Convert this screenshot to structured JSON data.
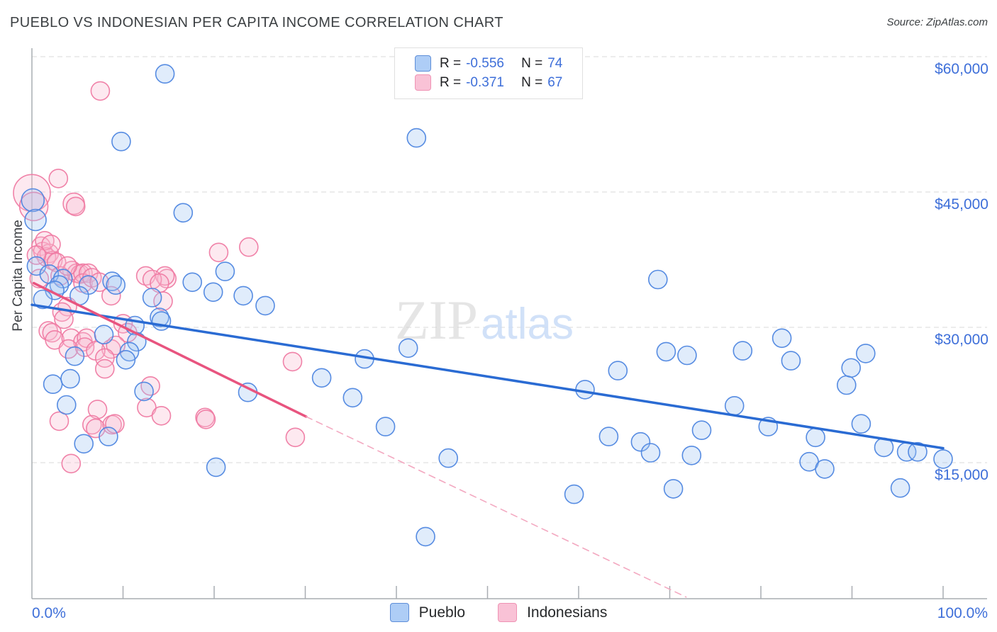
{
  "header": {
    "title": "PUEBLO VS INDONESIAN PER CAPITA INCOME CORRELATION CHART",
    "source": "Source: ZipAtlas.com"
  },
  "correlation_legend": {
    "rows": [
      {
        "series": "Pueblo",
        "r_label": "R =",
        "r_value": "-0.556",
        "n_label": "N =",
        "n_value": "74"
      },
      {
        "series": "Indonesians",
        "r_label": "R =",
        "r_value": "-0.371",
        "n_label": "N =",
        "n_value": "67"
      }
    ]
  },
  "series_legend": {
    "items": [
      {
        "label": "Pueblo",
        "swatch": "blue"
      },
      {
        "label": "Indonesians",
        "swatch": "pink"
      }
    ]
  },
  "watermark": {
    "part1": "ZIP",
    "part2": "atlas"
  },
  "colors": {
    "pueblo_stroke": "#4e86e0",
    "pueblo_fill": "#9ec3f4",
    "indonesian_stroke": "#ef7ba3",
    "indonesian_fill": "#f8bcd1",
    "pueblo_trend": "#2a6bd3",
    "indonesian_trend": "#e8547f",
    "indonesian_trend_dashed": "#f3a8c0",
    "axis_label_blue": "#3e6fd9",
    "grid": "#d9d9d9",
    "axis": "#a9adb2"
  },
  "chart_data": {
    "type": "scatter",
    "title": "PUEBLO VS INDONESIAN PER CAPITA INCOME CORRELATION CHART",
    "ylabel": "Per Capita Income",
    "xlabel_min": "0.0%",
    "xlabel_max": "100.0%",
    "x_range_pct": [
      0,
      100
    ],
    "x_tick_step_pct": 10,
    "y_range": [
      0,
      62000
    ],
    "grid": "horizontal-dashed",
    "legend_position": "top-center",
    "y_ticks": [
      {
        "value": 60000,
        "label": "$60,000"
      },
      {
        "value": 45000,
        "label": "$45,000"
      },
      {
        "value": 30000,
        "label": "$30,000"
      },
      {
        "value": 15000,
        "label": "$15,000"
      }
    ],
    "series": [
      {
        "name": "Pueblo",
        "r": -0.556,
        "n": 74,
        "stroke": "#4e86e0",
        "fill": "#9ec3f4",
        "points": [
          [
            14.6,
            58100
          ],
          [
            9.8,
            50600
          ],
          [
            42.2,
            51000
          ],
          [
            16.6,
            42700
          ],
          [
            0.1,
            44100,
            16
          ],
          [
            0.4,
            41900,
            15
          ],
          [
            0.5,
            36800
          ],
          [
            1.9,
            35900
          ],
          [
            3.4,
            35400
          ],
          [
            3.0,
            34700
          ],
          [
            2.5,
            34100
          ],
          [
            1.2,
            33100
          ],
          [
            6.2,
            34700
          ],
          [
            5.2,
            33500
          ],
          [
            8.8,
            35100
          ],
          [
            9.2,
            34700
          ],
          [
            11.3,
            30200
          ],
          [
            11.5,
            28400
          ],
          [
            14.0,
            31100
          ],
          [
            14.2,
            30700
          ],
          [
            4.7,
            26800
          ],
          [
            10.7,
            27300
          ],
          [
            10.3,
            26400
          ],
          [
            2.3,
            23700
          ],
          [
            4.2,
            24300
          ],
          [
            3.8,
            21400
          ],
          [
            12.3,
            22900
          ],
          [
            5.7,
            17100
          ],
          [
            8.4,
            17900
          ],
          [
            20.2,
            14500
          ],
          [
            17.6,
            35000
          ],
          [
            19.9,
            33900
          ],
          [
            23.2,
            33500
          ],
          [
            21.2,
            36200
          ],
          [
            25.6,
            32400
          ],
          [
            23.7,
            22800
          ],
          [
            31.8,
            24400
          ],
          [
            35.2,
            22200
          ],
          [
            36.5,
            26500
          ],
          [
            41.3,
            27700
          ],
          [
            38.8,
            19000
          ],
          [
            45.7,
            15500
          ],
          [
            43.2,
            6800
          ],
          [
            68.7,
            35300
          ],
          [
            69.6,
            27300
          ],
          [
            71.9,
            26900
          ],
          [
            64.3,
            25200
          ],
          [
            60.7,
            23100
          ],
          [
            63.3,
            17900
          ],
          [
            66.8,
            17300
          ],
          [
            67.9,
            16100
          ],
          [
            59.5,
            11500
          ],
          [
            70.4,
            12100
          ],
          [
            72.4,
            15800
          ],
          [
            73.5,
            18600
          ],
          [
            77.1,
            21300
          ],
          [
            78.0,
            27400
          ],
          [
            80.8,
            19000
          ],
          [
            82.3,
            28800
          ],
          [
            83.3,
            26300
          ],
          [
            85.3,
            15100
          ],
          [
            86.0,
            17800
          ],
          [
            87.0,
            14300
          ],
          [
            89.4,
            23600
          ],
          [
            89.9,
            25500
          ],
          [
            91.5,
            27100
          ],
          [
            91.0,
            19300
          ],
          [
            93.5,
            16700
          ],
          [
            96.0,
            16200
          ],
          [
            97.2,
            16200
          ],
          [
            95.3,
            12200
          ],
          [
            100.0,
            15400
          ],
          [
            7.9,
            29200
          ],
          [
            13.2,
            33300
          ]
        ]
      },
      {
        "name": "Indonesians",
        "r": -0.371,
        "n": 67,
        "stroke": "#ef7ba3",
        "fill": "#f8bcd1",
        "points": [
          [
            7.5,
            56200
          ],
          [
            2.9,
            46500
          ],
          [
            0.0,
            44900,
            26
          ],
          [
            0.2,
            43400,
            20
          ],
          [
            4.6,
            43700,
            15
          ],
          [
            4.8,
            43400,
            13
          ],
          [
            14.8,
            35400
          ],
          [
            20.5,
            38300
          ],
          [
            23.8,
            38900
          ],
          [
            19.0,
            20000
          ],
          [
            28.6,
            26200
          ],
          [
            28.9,
            17800
          ],
          [
            1.0,
            39000
          ],
          [
            1.2,
            38400
          ],
          [
            1.9,
            38200
          ],
          [
            1.6,
            37800
          ],
          [
            2.3,
            37400
          ],
          [
            2.7,
            37200
          ],
          [
            0.8,
            35400
          ],
          [
            4.4,
            36300
          ],
          [
            4.9,
            36000
          ],
          [
            5.3,
            35900
          ],
          [
            5.6,
            36000
          ],
          [
            6.2,
            36000
          ],
          [
            5.6,
            34900
          ],
          [
            3.1,
            35700
          ],
          [
            3.9,
            32300
          ],
          [
            3.3,
            31700
          ],
          [
            3.5,
            30900
          ],
          [
            1.8,
            29600
          ],
          [
            2.2,
            29400
          ],
          [
            2.5,
            28600
          ],
          [
            4.3,
            28800
          ],
          [
            5.6,
            28400
          ],
          [
            6.0,
            28800
          ],
          [
            8.7,
            33500
          ],
          [
            10.0,
            30400
          ],
          [
            10.5,
            29400
          ],
          [
            8.7,
            27600
          ],
          [
            9.2,
            28000
          ],
          [
            14.6,
            35700
          ],
          [
            4.0,
            27600
          ],
          [
            5.8,
            27800
          ],
          [
            7.0,
            27400
          ],
          [
            8.0,
            26600
          ],
          [
            8.0,
            25400
          ],
          [
            13.0,
            23500
          ],
          [
            12.6,
            21100
          ],
          [
            14.2,
            20200
          ],
          [
            7.2,
            20900
          ],
          [
            3.0,
            19600
          ],
          [
            6.6,
            19200
          ],
          [
            7.0,
            18800
          ],
          [
            8.8,
            19200
          ],
          [
            9.1,
            19300
          ],
          [
            19.1,
            19800
          ],
          [
            4.3,
            14900
          ],
          [
            1.4,
            39600
          ],
          [
            2.1,
            39200
          ],
          [
            0.5,
            38000
          ],
          [
            3.9,
            36800
          ],
          [
            6.6,
            35500
          ],
          [
            7.4,
            35000
          ],
          [
            12.5,
            35700
          ],
          [
            13.2,
            35300
          ],
          [
            14.0,
            34900
          ],
          [
            14.4,
            32900
          ]
        ]
      }
    ],
    "trend_lines": [
      {
        "series": "Pueblo",
        "style": "solid",
        "color": "#2a6bd3",
        "from": [
          0,
          32500
        ],
        "to": [
          100,
          16600
        ]
      },
      {
        "series": "Indonesians",
        "style": "solid",
        "color": "#e8547f",
        "from": [
          0.2,
          34900
        ],
        "to": [
          30.1,
          20100
        ]
      },
      {
        "series": "Indonesians",
        "style": "dashed",
        "color": "#f3a8c0",
        "from": [
          30.1,
          20100
        ],
        "to": [
          71.8,
          100
        ]
      }
    ]
  }
}
